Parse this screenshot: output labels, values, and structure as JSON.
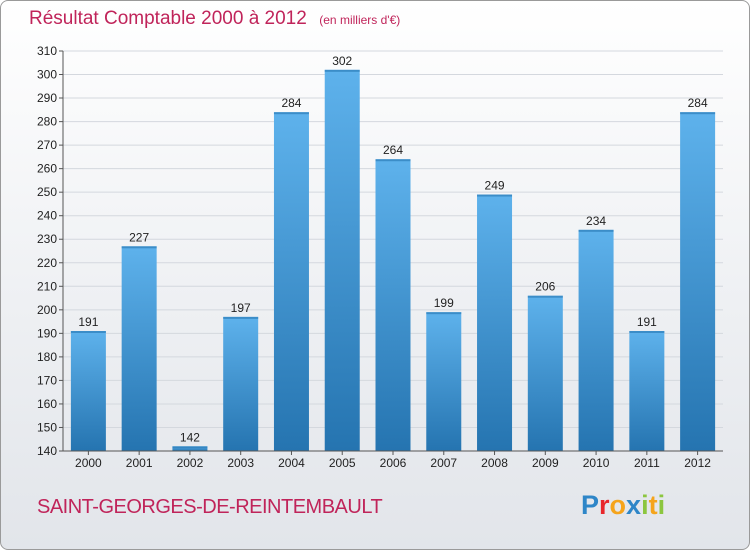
{
  "header": {
    "title": "Résultat Comptable 2000 à 2012",
    "subtitle": "(en milliers d'€)"
  },
  "footer": {
    "commune": "SAINT-GEORGES-DE-REINTEMBAULT",
    "logo_letters": [
      "P",
      "r",
      "o",
      "x",
      "i",
      "t",
      "i"
    ]
  },
  "colors": {
    "accent": "#c0245a",
    "bar_light": "#5eb2ec",
    "bar_dark": "#2574b0",
    "grid": "#d4d8de",
    "logo": [
      "#2e86c8",
      "#e8262a",
      "#f5a41c",
      "#2e86c8",
      "#8cc63f",
      "#f5a41c",
      "#8cc63f"
    ]
  },
  "chart_data": {
    "type": "bar",
    "categories": [
      "2000",
      "2001",
      "2002",
      "2003",
      "2004",
      "2005",
      "2006",
      "2007",
      "2008",
      "2009",
      "2010",
      "2011",
      "2012"
    ],
    "values": [
      191,
      227,
      142,
      197,
      284,
      302,
      264,
      199,
      249,
      206,
      234,
      191,
      284
    ],
    "ylim": [
      140,
      310
    ],
    "yticks": [
      140,
      150,
      160,
      170,
      180,
      190,
      200,
      210,
      220,
      230,
      240,
      250,
      260,
      270,
      280,
      290,
      300,
      310
    ],
    "grid": true,
    "data_labels": true
  }
}
